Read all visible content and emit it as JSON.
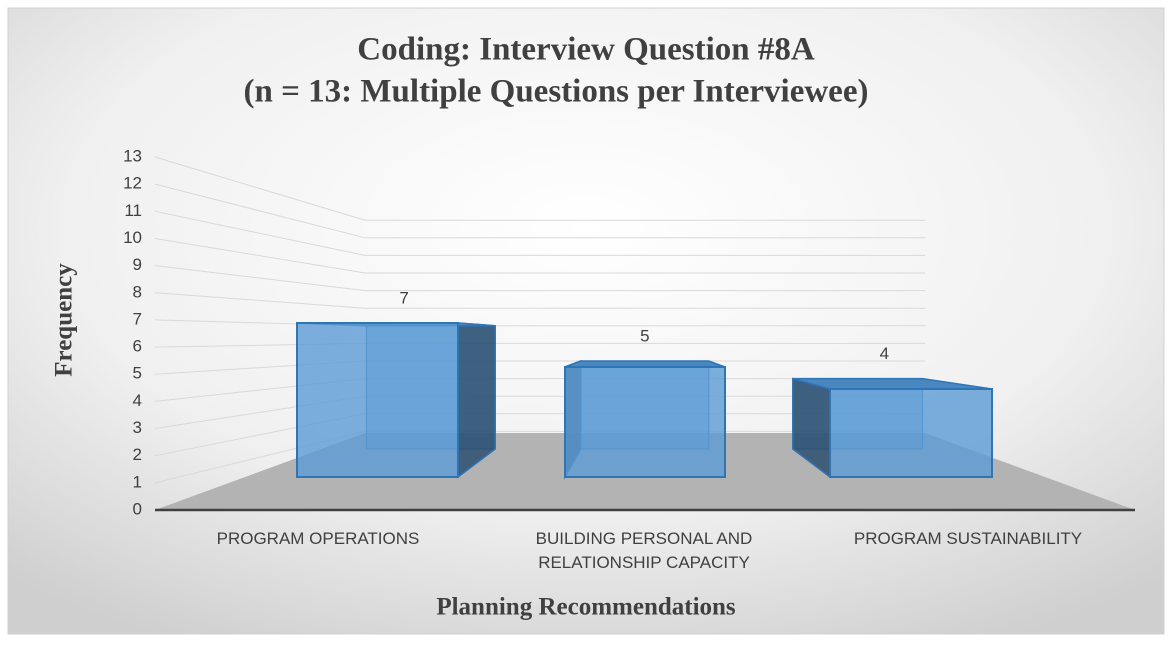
{
  "chart_data": {
    "type": "bar3d",
    "title": "Coding: Interview Question #8A",
    "subtitle": "(n = 13: Multiple Questions per Interviewee)",
    "x_label": "Planning Recommendations",
    "y_label": "Frequency",
    "categories": [
      "PROGRAM OPERATIONS",
      "BUILDING PERSONAL AND RELATIONSHIP CAPACITY",
      "PROGRAM SUSTAINABILITY"
    ],
    "values": [
      7,
      5,
      4
    ],
    "color": "#5b9bd5",
    "ylim": [
      0,
      13
    ],
    "yticks": [
      0,
      1,
      2,
      3,
      4,
      5,
      6,
      7,
      8,
      9,
      10,
      11,
      12,
      13
    ],
    "grid": true
  }
}
